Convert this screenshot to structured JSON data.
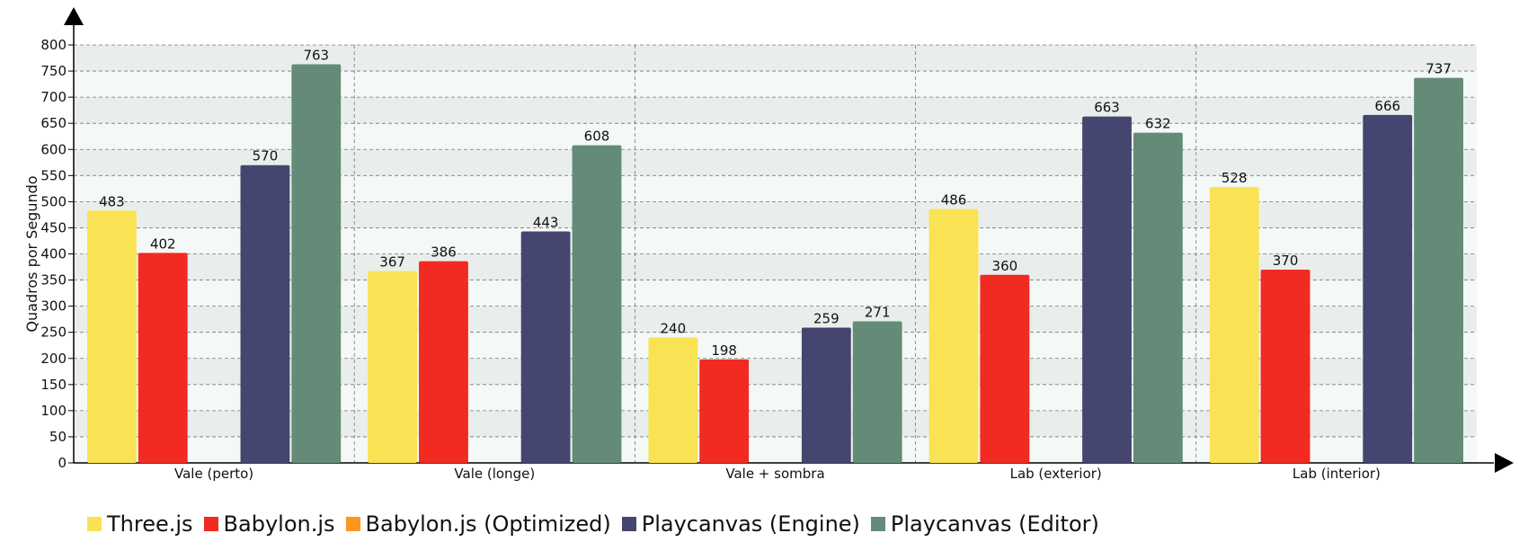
{
  "chart_data": {
    "type": "bar",
    "ylabel": "Quadros por Segundo",
    "xlabel": "",
    "ylim": [
      0,
      800
    ],
    "ytick_step": 50,
    "grid": true,
    "legend_position": "bottom-left",
    "categories": [
      "Vale (perto)",
      "Vale (longe)",
      "Vale + sombra",
      "Lab (exterior)",
      "Lab (interior)"
    ],
    "series": [
      {
        "name": "Three.js",
        "color": "#f9e354",
        "values": [
          483,
          367,
          240,
          486,
          528
        ]
      },
      {
        "name": "Babylon.js",
        "color": "#f12a22",
        "values": [
          402,
          386,
          198,
          360,
          370
        ]
      },
      {
        "name": "Babylon.js (Optimized)",
        "color": "#fb961f",
        "values": [
          null,
          null,
          null,
          null,
          null
        ]
      },
      {
        "name": "Playcanvas (Engine)",
        "color": "#45466f",
        "values": [
          570,
          443,
          259,
          663,
          666
        ]
      },
      {
        "name": "Playcanvas (Editor)",
        "color": "#648b77",
        "values": [
          763,
          608,
          271,
          632,
          737
        ]
      }
    ]
  }
}
